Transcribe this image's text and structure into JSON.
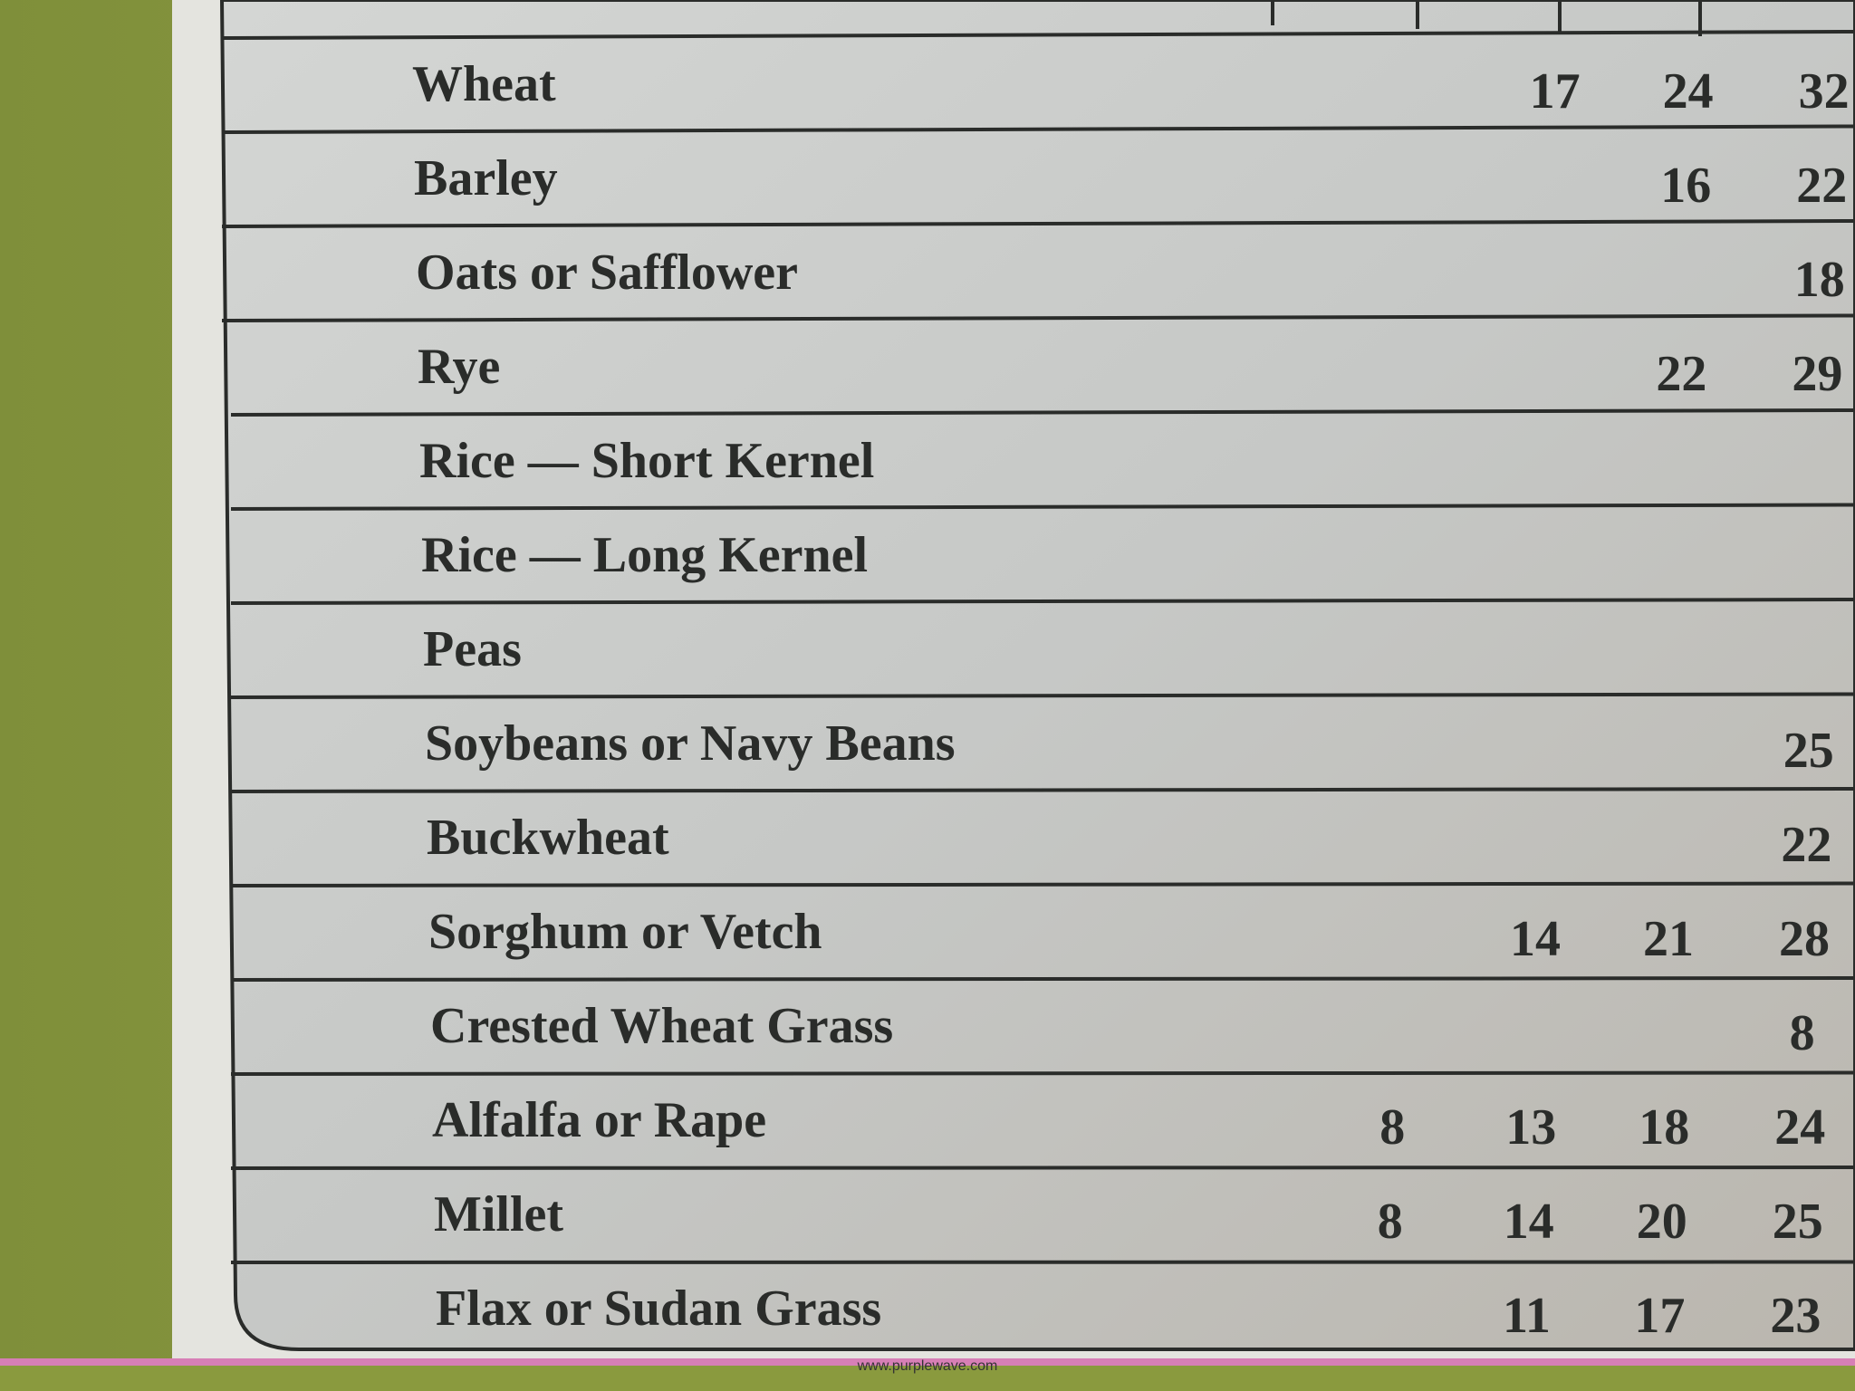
{
  "table": {
    "rows": [
      {
        "label": "Wheat",
        "cells": [
          null,
          17,
          24,
          32
        ]
      },
      {
        "label": "Barley",
        "cells": [
          null,
          null,
          16,
          22
        ]
      },
      {
        "label": "Oats or Safflower",
        "cells": [
          null,
          null,
          null,
          18
        ]
      },
      {
        "label": "Rye",
        "cells": [
          null,
          null,
          22,
          29
        ]
      },
      {
        "label": "Rice — Short Kernel",
        "cells": [
          null,
          null,
          null,
          null
        ]
      },
      {
        "label": "Rice — Long Kernel",
        "cells": [
          null,
          null,
          null,
          null
        ]
      },
      {
        "label": "Peas",
        "cells": [
          null,
          null,
          null,
          null
        ]
      },
      {
        "label": "Soybeans or Navy Beans",
        "cells": [
          null,
          null,
          null,
          25
        ]
      },
      {
        "label": "Buckwheat",
        "cells": [
          null,
          null,
          null,
          22
        ]
      },
      {
        "label": "Sorghum or Vetch",
        "cells": [
          null,
          14,
          21,
          28
        ]
      },
      {
        "label": "Crested Wheat Grass",
        "cells": [
          null,
          null,
          null,
          8
        ]
      },
      {
        "label": "Alfalfa or Rape",
        "cells": [
          8,
          13,
          18,
          24
        ]
      },
      {
        "label": "Millet",
        "cells": [
          8,
          14,
          20,
          25
        ]
      },
      {
        "label": "Flax or Sudan Grass",
        "cells": [
          null,
          11,
          17,
          23
        ]
      }
    ]
  },
  "watermark": "www.purplewave.com"
}
